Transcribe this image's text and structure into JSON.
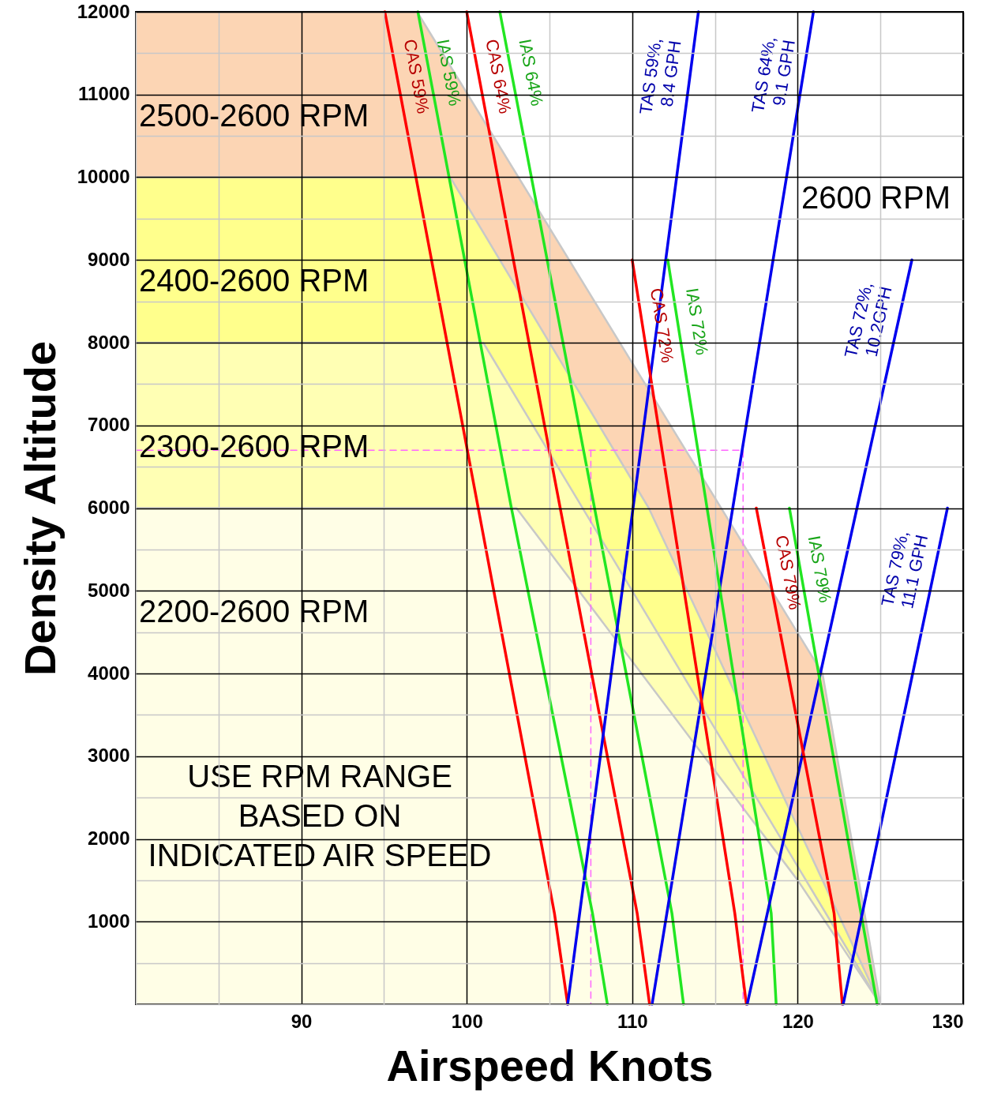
{
  "chart_data": {
    "type": "line",
    "xlabel": "Airspeed Knots",
    "ylabel": "Density Altitude",
    "xlim": [
      80,
      130
    ],
    "ylim": [
      0,
      12000
    ],
    "xticks": [
      {
        "value": 80,
        "label": null
      },
      {
        "value": 85,
        "label": null
      },
      90,
      {
        "value": 95,
        "label": null
      },
      100,
      {
        "value": 105,
        "label": null
      },
      110,
      {
        "value": 115,
        "label": null
      },
      120,
      {
        "value": 125,
        "label": null
      },
      130
    ],
    "yticks": [
      {
        "value": 0,
        "label": null
      },
      {
        "value": 500,
        "label": null
      },
      1000,
      {
        "value": 1500,
        "label": null
      },
      2000,
      {
        "value": 2500,
        "label": null
      },
      3000,
      {
        "value": 3500,
        "label": null
      },
      4000,
      {
        "value": 4500,
        "label": null
      },
      5000,
      {
        "value": 5500,
        "label": null
      },
      6000,
      {
        "value": 6500,
        "label": null
      },
      7000,
      {
        "value": 7500,
        "label": null
      },
      8000,
      {
        "value": 8500,
        "label": null
      },
      9000,
      {
        "value": 9500,
        "label": null
      },
      10000,
      {
        "value": 10500,
        "label": null
      },
      11000,
      {
        "value": 11500,
        "label": null
      },
      12000
    ],
    "grid": true,
    "marker": "none",
    "series": [
      {
        "type": "area",
        "color": "#fcd5b4",
        "x": [
          80,
          97,
          121.5,
          125
        ],
        "values": [
          12000,
          12000,
          4000,
          0
        ]
      },
      {
        "type": "area",
        "color": "#ffff8c",
        "x": [
          80,
          99,
          111,
          125
        ],
        "values": [
          10000,
          10000,
          6000,
          0
        ]
      },
      {
        "type": "area",
        "color": "#ffffb4",
        "x": [
          80,
          101,
          125
        ],
        "values": [
          8000,
          8000,
          0
        ]
      },
      {
        "type": "area",
        "color": "#fffee6",
        "x": [
          80,
          103,
          120,
          125
        ],
        "values": [
          6000,
          6000,
          1500,
          0
        ]
      },
      {
        "color": "#ff66ff",
        "line_style": "dashed",
        "x": [
          80,
          116.7,
          116.7
        ],
        "values": [
          6700,
          6700,
          0
        ]
      },
      {
        "color": "#ff66ff",
        "line_style": "dashed",
        "x": [
          107.5,
          107.5
        ],
        "values": [
          6700,
          0
        ]
      },
      {
        "name": "CAS 59%",
        "color": "#ff0000",
        "x": [
          95.05,
          100.6,
          105.3,
          106.1
        ],
        "values": [
          12000,
          6100,
          1100,
          0
        ]
      },
      {
        "name": "IAS 59%",
        "color": "#22e622",
        "x": [
          97.05,
          102.7,
          107.6,
          108.5
        ],
        "values": [
          12000,
          6000,
          1100,
          0
        ]
      },
      {
        "name": "CAS 64%",
        "color": "#ff0000",
        "x": [
          100,
          104.7,
          110.3,
          111.05
        ],
        "values": [
          12000,
          7000,
          1100,
          0
        ]
      },
      {
        "name": "IAS 64%",
        "color": "#22e622",
        "x": [
          102,
          112.4,
          113.1
        ],
        "values": [
          12000,
          1100,
          0
        ]
      },
      {
        "name": "TAS 59%,\n8.4 GPH",
        "color": "#0000ee",
        "x": [
          106.1,
          114
        ],
        "values": [
          0,
          12000
        ]
      },
      {
        "name": "TAS 64%,\n9.1 GPH",
        "color": "#0000ee",
        "x": [
          111.2,
          120.95
        ],
        "values": [
          0,
          12000
        ]
      },
      {
        "name": "CAS 72%",
        "color": "#ff0000",
        "x": [
          110,
          116.2,
          116.9
        ],
        "values": [
          9000,
          1100,
          0
        ]
      },
      {
        "name": "IAS 72%",
        "color": "#22e622",
        "x": [
          112.15,
          118.4,
          118.7
        ],
        "values": [
          9000,
          1100,
          0
        ]
      },
      {
        "name": "TAS 72%,\n10.2GPH",
        "color": "#0000ee",
        "x": [
          116.95,
          126.9
        ],
        "values": [
          0,
          9000
        ]
      },
      {
        "name": "CAS 79%",
        "color": "#ff0000",
        "x": [
          117.5,
          122.2,
          122.7
        ],
        "values": [
          6000,
          1100,
          0
        ]
      },
      {
        "name": "IAS 79%",
        "color": "#22e622",
        "x": [
          119.5,
          124.8
        ],
        "values": [
          6000,
          0
        ]
      },
      {
        "name": "TAS 79%,\n11.1 GPH",
        "color": "#0000ee",
        "x": [
          122.75,
          129.05
        ],
        "values": [
          0,
          6000
        ]
      }
    ],
    "annotations": [
      "2500-2600 RPM",
      "2400-2600 RPM",
      "2300-2600 RPM",
      "2200-2600 RPM",
      "2600 RPM",
      "USE RPM RANGE\nBASED ON\nINDICATED AIR SPEED"
    ]
  }
}
